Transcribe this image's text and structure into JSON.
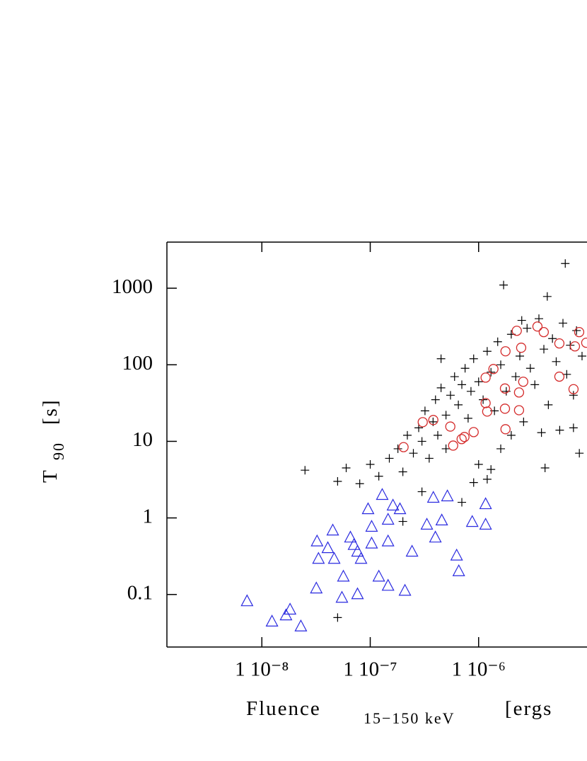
{
  "chart_data": {
    "type": "scatter",
    "x_label": "Fluence",
    "x_label_sub": "15−150 keV",
    "x_label_end": "[ergs",
    "y_label": "T",
    "y_label_sub": "90",
    "y_label_end": "[s]",
    "xlog": true,
    "ylog": true,
    "xlim": [
      1.33e-09,
      1e-05
    ],
    "ylim": [
      0.0206,
      4000
    ],
    "xticks": [
      {
        "value": 1e-08,
        "label": "1 10⁻⁸"
      },
      {
        "value": 1e-07,
        "label": "1 10⁻⁷"
      },
      {
        "value": 1e-06,
        "label": "1 10⁻⁶"
      }
    ],
    "yticks": [
      {
        "value": 0.1,
        "label": "0.1"
      },
      1,
      10,
      100,
      1000
    ],
    "series": [
      {
        "marker": "plus",
        "color": "#000000",
        "x": [
          2.5e-08,
          5e-08,
          6e-08,
          8e-08,
          1e-07,
          1.2e-07,
          1.5e-07,
          1.8e-07,
          2e-07,
          2.2e-07,
          2.5e-07,
          2.8e-07,
          3e-07,
          3.2e-07,
          3.5e-07,
          3.8e-07,
          4e-07,
          4.2e-07,
          4.5e-07,
          5e-07,
          5.5e-07,
          6e-07,
          6.5e-07,
          7e-07,
          7.5e-07,
          8e-07,
          8.5e-07,
          9e-07,
          1e-06,
          1.1e-06,
          1.2e-06,
          1.3e-06,
          1.4e-06,
          1.5e-06,
          1.6e-06,
          1.8e-06,
          2e-06,
          2.2e-06,
          2.4e-06,
          2.6e-06,
          2.8e-06,
          3e-06,
          3.3e-06,
          3.6e-06,
          4e-06,
          4.4e-06,
          4.8e-06,
          5.2e-06,
          5.6e-06,
          6e-06,
          6.5e-06,
          7e-06,
          7.5e-06,
          8e-06,
          8.5e-06,
          9e-06,
          5e-07,
          1e-06,
          9e-07,
          1.3e-06,
          1.7e-06,
          4.3e-06,
          6.3e-06,
          4.1e-06,
          2e-06,
          3e-07,
          7e-07,
          1.2e-06,
          5e-08,
          2e-07,
          4.5e-07,
          2.5e-06,
          1.6e-06,
          3.8e-06,
          7.5e-06
        ],
        "values": [
          4.2,
          3.0,
          4.5,
          2.8,
          5,
          3.5,
          6,
          8,
          4,
          12,
          7,
          15,
          10,
          25,
          6,
          18,
          35,
          12,
          50,
          22,
          40,
          70,
          30,
          55,
          90,
          20,
          45,
          120,
          60,
          35,
          150,
          80,
          25,
          200,
          100,
          45,
          250,
          70,
          130,
          18,
          300,
          90,
          55,
          400,
          160,
          30,
          220,
          110,
          14,
          350,
          75,
          180,
          40,
          280,
          7,
          130,
          8,
          5,
          2.9,
          4.3,
          1100,
          780,
          2100,
          4.5,
          12,
          2.2,
          1.6,
          3.2,
          0.05,
          0.9,
          120,
          380,
          8,
          13,
          15
        ]
      },
      {
        "marker": "circle",
        "color": "#d42a2a",
        "x": [
          2.03e-07,
          3.05e-07,
          3.82e-07,
          5.48e-07,
          6.97e-07,
          7.4e-07,
          9e-07,
          1.16e-06,
          1.2e-06,
          1.16e-06,
          1.37e-06,
          1.75e-06,
          1.77e-06,
          1.77e-06,
          2.25e-06,
          2.36e-06,
          2.47e-06,
          2.58e-06,
          3.49e-06,
          3.99e-06,
          5.56e-06,
          5.56e-06,
          7.51e-06,
          7.74e-06,
          8.47e-06,
          9.84e-06,
          2.36e-06,
          1.75e-06,
          5.82e-07
        ],
        "values": [
          8.4,
          17.8,
          19,
          15.6,
          10.7,
          11.4,
          13.2,
          68,
          24.5,
          31.6,
          88,
          49,
          150,
          14.4,
          278,
          43.5,
          167,
          60,
          316,
          267,
          190,
          70,
          48,
          174,
          267,
          194,
          25.5,
          26.7,
          8.8
        ]
      },
      {
        "marker": "triangle",
        "color": "#2a2ae0",
        "x": [
          7.3e-09,
          1.24e-08,
          1.67e-08,
          2.29e-08,
          1.82e-08,
          3.18e-08,
          3.23e-08,
          3.33e-08,
          4.51e-08,
          4.65e-08,
          5.65e-08,
          5.48e-08,
          6.56e-08,
          7.08e-08,
          7.63e-08,
          8.22e-08,
          9.55e-08,
          1.03e-07,
          1.2e-07,
          1.29e-07,
          1.46e-07,
          1.46e-07,
          1.62e-07,
          1.88e-07,
          2.09e-07,
          2.43e-07,
          3.33e-07,
          3.99e-07,
          4.57e-07,
          5.15e-07,
          6.27e-07,
          6.56e-07,
          8.73e-07,
          1.16e-06,
          1.16e-06,
          3.82e-07,
          1.03e-07,
          1.46e-07,
          4.06e-08,
          7.63e-08
        ],
        "values": [
          0.081,
          0.044,
          0.053,
          0.038,
          0.063,
          0.119,
          0.49,
          0.29,
          0.68,
          0.29,
          0.17,
          0.09,
          0.55,
          0.44,
          0.36,
          0.29,
          1.29,
          0.76,
          0.17,
          1.98,
          0.94,
          0.49,
          1.44,
          1.29,
          0.111,
          0.36,
          0.81,
          0.55,
          0.92,
          1.9,
          0.32,
          0.2,
          0.88,
          1.5,
          0.81,
          1.82,
          0.46,
          0.129,
          0.4,
          0.1
        ]
      }
    ]
  }
}
